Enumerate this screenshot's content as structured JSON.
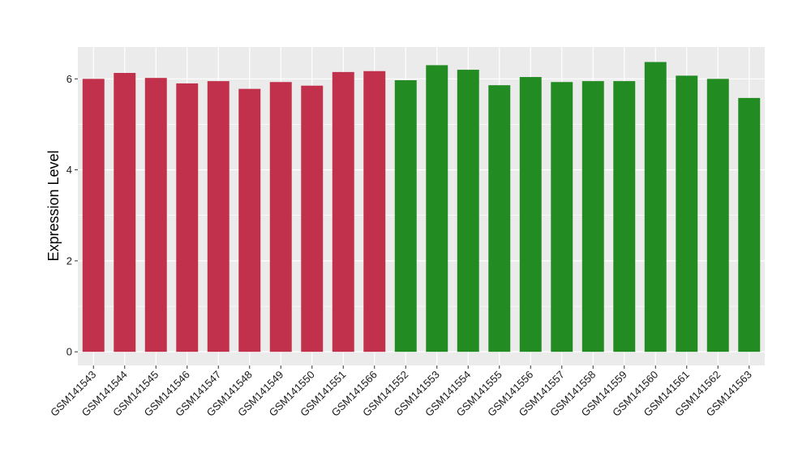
{
  "chart_data": {
    "type": "bar",
    "title": "",
    "xlabel": "",
    "ylabel": "Expression Level",
    "ylim": [
      -0.3,
      6.7
    ],
    "yticks": [
      0,
      2,
      4,
      6
    ],
    "grid": true,
    "legend": "none",
    "categories": [
      "GSM141543",
      "GSM141544",
      "GSM141545",
      "GSM141546",
      "GSM141547",
      "GSM141548",
      "GSM141549",
      "GSM141550",
      "GSM141551",
      "GSM141566",
      "GSM141552",
      "GSM141553",
      "GSM141554",
      "GSM141555",
      "GSM141556",
      "GSM141557",
      "GSM141558",
      "GSM141559",
      "GSM141560",
      "GSM141561",
      "GSM141562",
      "GSM141563"
    ],
    "values": [
      6.0,
      6.13,
      6.02,
      5.9,
      5.95,
      5.78,
      5.93,
      5.85,
      6.15,
      6.17,
      5.97,
      6.3,
      6.2,
      5.86,
      6.04,
      5.93,
      5.95,
      5.95,
      6.37,
      6.07,
      6.0,
      5.58
    ],
    "groups": [
      "red",
      "red",
      "red",
      "red",
      "red",
      "red",
      "red",
      "red",
      "red",
      "red",
      "green",
      "green",
      "green",
      "green",
      "green",
      "green",
      "green",
      "green",
      "green",
      "green",
      "green",
      "green"
    ],
    "colors": {
      "red": "#c2314b",
      "green": "#228b22",
      "panel": "#ebebeb",
      "grid": "#ffffff"
    }
  }
}
